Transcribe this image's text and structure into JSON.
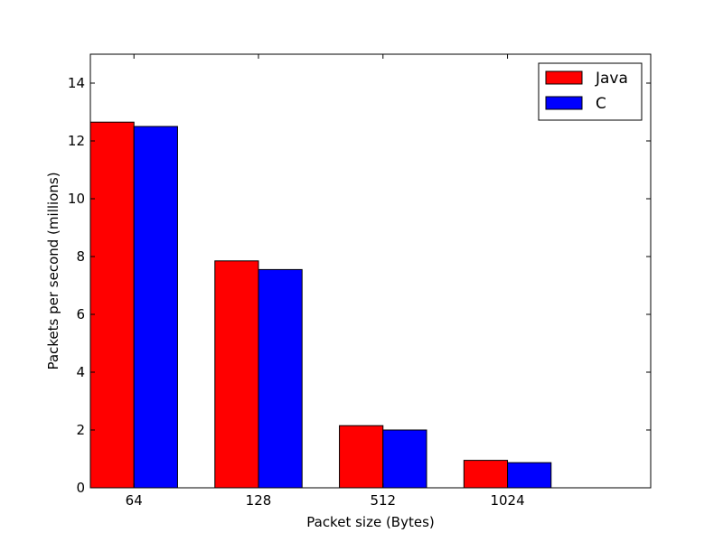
{
  "chart_data": {
    "type": "bar",
    "title": "",
    "xlabel": "Packet size (Bytes)",
    "ylabel": "Packets per second (millions)",
    "categories": [
      "64",
      "128",
      "512",
      "1024"
    ],
    "series": [
      {
        "name": "Java",
        "color": "#ff0000",
        "values": [
          12.65,
          7.85,
          2.15,
          0.95
        ]
      },
      {
        "name": "C",
        "color": "#0000ff",
        "values": [
          12.5,
          7.55,
          2.0,
          0.87
        ]
      }
    ],
    "ylim": [
      0,
      15
    ],
    "yticks": [
      "0",
      "2",
      "4",
      "6",
      "8",
      "10",
      "12",
      "14"
    ],
    "grid": false,
    "legend_position": "top-right"
  }
}
